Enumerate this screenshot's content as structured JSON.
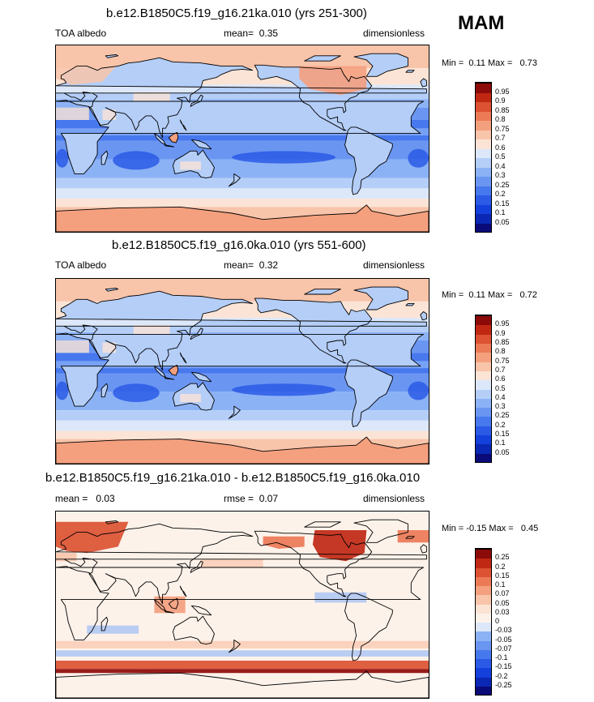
{
  "season": "MAM",
  "chart_data": [
    {
      "type": "heatmap",
      "title": "b.e12.B1850C5.f19_g16.21ka.010 (yrs 251-300)",
      "left_label": "TOA albedo",
      "mean_label": "mean=",
      "mean_value": "0.35",
      "units": "dimensionless",
      "min_label": "Min =",
      "min_value": "0.11",
      "max_label": "Max =",
      "max_value": "0.73",
      "colorbar": {
        "levels": [
          "0.05",
          "0.1",
          "0.15",
          "0.2",
          "0.25",
          "0.3",
          "0.4",
          "0.5",
          "0.6",
          "0.7",
          "0.75",
          "0.8",
          "0.85",
          "0.9",
          "0.95"
        ],
        "colors": [
          "#0a0a78",
          "#0a28b4",
          "#1440dc",
          "#2a5ae6",
          "#4878ee",
          "#6a96f2",
          "#8cb2f6",
          "#b4cef8",
          "#dce8fa",
          "#fbe4d6",
          "#f8c4aa",
          "#f4a07e",
          "#ec7a56",
          "#dc5232",
          "#c02814",
          "#8c0a08"
        ]
      },
      "field": "toa_albedo_glacial"
    },
    {
      "type": "heatmap",
      "title": "b.e12.B1850C5.f19_g16.0ka.010 (yrs 551-600)",
      "left_label": "TOA albedo",
      "mean_label": "mean=",
      "mean_value": "0.32",
      "units": "dimensionless",
      "min_label": "Min =",
      "min_value": "0.11",
      "max_label": "Max =",
      "max_value": "0.72",
      "colorbar": {
        "levels": [
          "0.05",
          "0.1",
          "0.15",
          "0.2",
          "0.25",
          "0.3",
          "0.4",
          "0.5",
          "0.6",
          "0.7",
          "0.75",
          "0.8",
          "0.85",
          "0.9",
          "0.95"
        ],
        "colors": [
          "#0a0a78",
          "#0a28b4",
          "#1440dc",
          "#2a5ae6",
          "#4878ee",
          "#6a96f2",
          "#8cb2f6",
          "#b4cef8",
          "#dce8fa",
          "#fbe4d6",
          "#f8c4aa",
          "#f4a07e",
          "#ec7a56",
          "#dc5232",
          "#c02814",
          "#8c0a08"
        ]
      },
      "field": "toa_albedo_preindustrial"
    },
    {
      "type": "heatmap",
      "title": "b.e12.B1850C5.f19_g16.21ka.010 - b.e12.B1850C5.f19_g16.0ka.010",
      "left_label": "mean =",
      "left_value": "0.03",
      "mean_label": "rmse =",
      "mean_value": "0.07",
      "units": "dimensionless",
      "min_label": "Min =",
      "min_value": "-0.15",
      "max_label": "Max =",
      "max_value": "0.45",
      "colorbar": {
        "levels": [
          "-0.25",
          "-0.2",
          "-0.15",
          "-0.1",
          "-0.07",
          "-0.05",
          "-0.03",
          "0",
          "0.03",
          "0.05",
          "0.07",
          "0.1",
          "0.15",
          "0.2",
          "0.25"
        ],
        "colors": [
          "#0a0a78",
          "#0a28b4",
          "#1440dc",
          "#2a5ae6",
          "#4878ee",
          "#6a96f2",
          "#8cb2f6",
          "#dce8fa",
          "#fdf2ea",
          "#fbe4d6",
          "#f8c4aa",
          "#f4a07e",
          "#ec7a56",
          "#dc5232",
          "#c02814",
          "#8c0a08"
        ]
      },
      "field": "toa_albedo_difference"
    }
  ]
}
